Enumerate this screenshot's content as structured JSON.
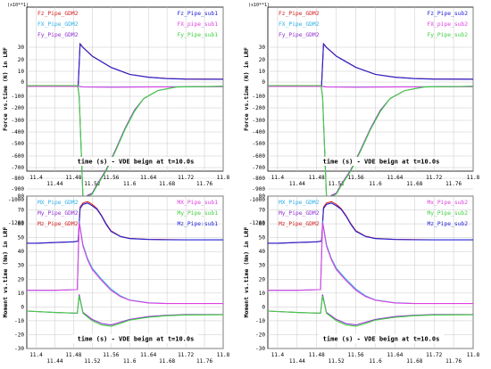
{
  "chart_data": [
    {
      "type": "line",
      "multiplier_label": "(x10**1)",
      "ylabel": "Force vs.time (N) in LRF",
      "xlabel": "time (s) - VDE beign at t=10.0s",
      "xlim": [
        11.38,
        11.8
      ],
      "ylim": [
        -120,
        40
      ],
      "yticks": [
        30,
        20,
        10,
        0,
        -100,
        -200,
        -300,
        -400,
        -500,
        -600,
        -700,
        -800,
        -900,
        -1000,
        -1200
      ],
      "xticks_top": [
        "11.4",
        "11.48",
        "11.56",
        "11.64",
        "11.72",
        "11.8"
      ],
      "xticks_bottom": [
        "11.44",
        "11.52",
        "11.6",
        "11.68",
        "11.76"
      ],
      "legend_left": [
        "Fz_Pipe_GDM2",
        "FX_Pipe_GDM2",
        "Fy_Pipe_GDM2"
      ],
      "legend_right": [
        "Fz_Pipe_sub1",
        "FX_pipe_sub1",
        "Fy_Pipe_sub1"
      ],
      "colors": [
        "#d42020",
        "#30b0e8",
        "#9030d0",
        "#2020d8",
        "#e040e0",
        "#40d040"
      ],
      "series": [
        {
          "name": "Fz_Pipe_GDM2",
          "x": [
            11.38,
            11.49,
            11.494,
            11.5,
            11.52,
            11.56,
            11.6,
            11.64,
            11.68,
            11.72,
            11.8
          ],
          "y": [
            -2.6,
            -2.6,
            33,
            30,
            23,
            13.5,
            7.2,
            4.5,
            3.3,
            2.8,
            2.7
          ]
        },
        {
          "name": "Fz_Pipe_sub1",
          "x": [
            11.38,
            11.49,
            11.494,
            11.5,
            11.52,
            11.56,
            11.6,
            11.64,
            11.68,
            11.72,
            11.8
          ],
          "y": [
            -2.6,
            -2.6,
            32.8,
            29.8,
            22.8,
            13.4,
            7.1,
            4.4,
            3.2,
            2.7,
            2.6
          ]
        },
        {
          "name": "FX_Pipe_GDM2",
          "x": [
            11.38,
            11.49,
            11.5,
            11.56,
            11.64,
            11.72,
            11.8
          ],
          "y": [
            -3.0,
            -3.0,
            -3.4,
            -3.5,
            -3.4,
            -3.3,
            -3.2
          ]
        },
        {
          "name": "FX_pipe_sub1",
          "x": [
            11.38,
            11.49,
            11.5,
            11.56,
            11.64,
            11.72,
            11.8
          ],
          "y": [
            -3.1,
            -3.1,
            -3.5,
            -3.6,
            -3.5,
            -3.4,
            -3.3
          ]
        },
        {
          "name": "Fy_Pipe_GDM2",
          "x": [
            11.38,
            11.489,
            11.492,
            11.5,
            11.504,
            11.51,
            11.52,
            11.53,
            11.55,
            11.57,
            11.59,
            11.61,
            11.63,
            11.66,
            11.7,
            11.8
          ],
          "y": [
            -2.5,
            -2.5,
            -10,
            -97,
            -100,
            -96,
            -94,
            -86,
            -72,
            -55,
            -37,
            -22,
            -12,
            -6,
            -3.5,
            -3
          ]
        },
        {
          "name": "Fy_Pipe_sub1",
          "x": [
            11.38,
            11.489,
            11.492,
            11.5,
            11.504,
            11.51,
            11.52,
            11.53,
            11.55,
            11.57,
            11.59,
            11.61,
            11.63,
            11.66,
            11.7,
            11.8
          ],
          "y": [
            -2.5,
            -2.5,
            -10,
            -98,
            -101,
            -97,
            -95,
            -87,
            -73,
            -56,
            -38,
            -23,
            -12,
            -6,
            -3.5,
            -3
          ]
        }
      ]
    },
    {
      "type": "line",
      "multiplier_label": "(x10**1)",
      "ylabel": "Force vs.time (N) in LRF",
      "xlabel": "time (s) - VDE beign at t=10.0s",
      "xlim": [
        11.38,
        11.8
      ],
      "ylim": [
        -120,
        40
      ],
      "yticks": [
        30,
        20,
        10,
        0,
        -100,
        -200,
        -300,
        -400,
        -500,
        -600,
        -700,
        -800,
        -900,
        -1000,
        -1200
      ],
      "xticks_top": [
        "11.4",
        "11.48",
        "11.56",
        "11.64",
        "11.72",
        "11.8"
      ],
      "xticks_bottom": [
        "11.44",
        "11.52",
        "11.6",
        "11.68",
        "11.76"
      ],
      "legend_left": [
        "Fz_Pipe_GDM2",
        "FX_Pipe_GDM2",
        "Fy_Pipe_GDM2"
      ],
      "legend_right": [
        "Fz_Pipe_sub2",
        "FX_pipe_sub2",
        "Fy_Pipe_sub2"
      ],
      "colors": [
        "#d42020",
        "#30b0e8",
        "#9030d0",
        "#2020d8",
        "#e040e0",
        "#40d040"
      ],
      "series": [
        {
          "name": "Fz_Pipe_GDM2",
          "x": [
            11.38,
            11.49,
            11.494,
            11.5,
            11.52,
            11.56,
            11.6,
            11.64,
            11.68,
            11.72,
            11.8
          ],
          "y": [
            -2.6,
            -2.6,
            33,
            30,
            23,
            13.5,
            7.2,
            4.5,
            3.3,
            2.8,
            2.7
          ]
        },
        {
          "name": "Fz_Pipe_sub2",
          "x": [
            11.38,
            11.49,
            11.494,
            11.5,
            11.52,
            11.56,
            11.6,
            11.64,
            11.68,
            11.72,
            11.8
          ],
          "y": [
            -2.6,
            -2.6,
            32.8,
            29.8,
            22.8,
            13.4,
            7.1,
            4.4,
            3.2,
            2.7,
            2.6
          ]
        },
        {
          "name": "FX_Pipe_GDM2",
          "x": [
            11.38,
            11.49,
            11.5,
            11.56,
            11.64,
            11.72,
            11.8
          ],
          "y": [
            -3.0,
            -3.0,
            -3.4,
            -3.5,
            -3.4,
            -3.3,
            -3.2
          ]
        },
        {
          "name": "FX_pipe_sub2",
          "x": [
            11.38,
            11.49,
            11.5,
            11.56,
            11.64,
            11.72,
            11.8
          ],
          "y": [
            -3.1,
            -3.1,
            -3.5,
            -3.6,
            -3.5,
            -3.4,
            -3.3
          ]
        },
        {
          "name": "Fy_Pipe_GDM2",
          "x": [
            11.38,
            11.489,
            11.492,
            11.5,
            11.504,
            11.51,
            11.52,
            11.53,
            11.55,
            11.57,
            11.59,
            11.61,
            11.63,
            11.66,
            11.7,
            11.8
          ],
          "y": [
            -2.5,
            -2.5,
            -10,
            -97,
            -100,
            -96,
            -94,
            -86,
            -72,
            -55,
            -37,
            -22,
            -12,
            -6,
            -3.5,
            -3
          ]
        },
        {
          "name": "Fy_Pipe_sub2",
          "x": [
            11.38,
            11.489,
            11.492,
            11.5,
            11.504,
            11.51,
            11.52,
            11.53,
            11.55,
            11.57,
            11.59,
            11.61,
            11.63,
            11.66,
            11.7,
            11.8
          ],
          "y": [
            -2.5,
            -2.5,
            -10,
            -98,
            -101,
            -97,
            -95,
            -87,
            -73,
            -56,
            -38,
            -23,
            -12,
            -6,
            -3.5,
            -3
          ]
        }
      ]
    },
    {
      "type": "line",
      "multiplier_label": "",
      "ylabel": "Moment vs.time (Nm) in LRF",
      "xlabel": "time (s) - VDE beign at t=10.0s",
      "xlim": [
        11.38,
        11.8
      ],
      "ylim": [
        -30,
        80
      ],
      "yticks": [
        80,
        70,
        60,
        50,
        40,
        30,
        20,
        10,
        0,
        -10,
        -20,
        -30
      ],
      "xticks_top": [
        "11.4",
        "11.48",
        "11.56",
        "11.64",
        "11.72",
        "11.8"
      ],
      "xticks_bottom": [
        "11.44",
        "11.52",
        "11.6",
        "11.68",
        "11.76"
      ],
      "legend_left": [
        "MX_Pipe_GDM2",
        "My_Pipe_GDM2",
        "Mz_Pipe_GDM2"
      ],
      "legend_right": [
        "MX_Pipe_sub1",
        "My_Pipe_sub1",
        "Mz_Pipe:sub1"
      ],
      "colors": [
        "#30b0e8",
        "#9030d0",
        "#d42020",
        "#e040e0",
        "#40d040",
        "#2020d8"
      ],
      "series": [
        {
          "name": "Mz_Pipe_GDM2",
          "x": [
            11.38,
            11.4,
            11.44,
            11.48,
            11.49,
            11.494,
            11.5,
            11.51,
            11.52,
            11.53,
            11.54,
            11.55,
            11.56,
            11.58,
            11.6,
            11.64,
            11.68,
            11.72,
            11.8
          ],
          "y": [
            46,
            46,
            46.5,
            47,
            47.5,
            72,
            75,
            76,
            74,
            71,
            66,
            60,
            55,
            51,
            49.5,
            48.8,
            48.6,
            48.5,
            48.5
          ]
        },
        {
          "name": "Mz_Pipe:sub1",
          "x": [
            11.38,
            11.4,
            11.44,
            11.48,
            11.49,
            11.494,
            11.5,
            11.51,
            11.52,
            11.53,
            11.54,
            11.55,
            11.56,
            11.58,
            11.6,
            11.64,
            11.68,
            11.72,
            11.8
          ],
          "y": [
            46,
            46,
            46.5,
            47,
            47.5,
            71,
            74,
            75,
            73,
            70.5,
            65.5,
            59.5,
            54.5,
            50.8,
            49.3,
            48.7,
            48.5,
            48.4,
            48.4
          ]
        },
        {
          "name": "MX_Pipe_GDM2",
          "x": [
            11.38,
            11.44,
            11.488,
            11.492,
            11.5,
            11.51,
            11.52,
            11.53,
            11.54,
            11.56,
            11.58,
            11.6,
            11.64,
            11.68,
            11.8
          ],
          "y": [
            12,
            12,
            12.5,
            62,
            45,
            35,
            28,
            24,
            20,
            13,
            8,
            5,
            3,
            2.5,
            2.5
          ]
        },
        {
          "name": "MX_Pipe_sub1",
          "x": [
            11.38,
            11.44,
            11.488,
            11.492,
            11.5,
            11.51,
            11.52,
            11.53,
            11.54,
            11.56,
            11.58,
            11.6,
            11.64,
            11.68,
            11.8
          ],
          "y": [
            12,
            12,
            12.5,
            61,
            44,
            34,
            27,
            23,
            19,
            12,
            7.5,
            4.8,
            2.9,
            2.4,
            2.4
          ]
        },
        {
          "name": "My_Pipe_GDM2",
          "x": [
            11.38,
            11.44,
            11.488,
            11.492,
            11.5,
            11.52,
            11.54,
            11.56,
            11.58,
            11.6,
            11.64,
            11.68,
            11.72,
            11.8
          ],
          "y": [
            -3,
            -4,
            -4.5,
            9,
            -4,
            -9,
            -12,
            -13,
            -11,
            -9,
            -7,
            -6,
            -5.5,
            -5.5
          ]
        },
        {
          "name": "My_Pipe_sub1",
          "x": [
            11.38,
            11.44,
            11.488,
            11.492,
            11.5,
            11.52,
            11.54,
            11.56,
            11.58,
            11.6,
            11.64,
            11.68,
            11.72,
            11.8
          ],
          "y": [
            -3,
            -4,
            -4.5,
            8,
            -4.5,
            -10,
            -13,
            -14,
            -12,
            -9.5,
            -7.5,
            -6.3,
            -5.8,
            -5.7
          ]
        }
      ]
    },
    {
      "type": "line",
      "multiplier_label": "",
      "ylabel": "Moment vs.time (Nm) in LRF",
      "xlabel": "time (s) - VDE beign at t=10.0s",
      "xlim": [
        11.38,
        11.8
      ],
      "ylim": [
        -30,
        80
      ],
      "yticks": [
        80,
        70,
        60,
        50,
        40,
        30,
        20,
        10,
        0,
        -10,
        -20,
        -30
      ],
      "xticks_top": [
        "11.4",
        "11.48",
        "11.56",
        "11.64",
        "11.72",
        "11.8"
      ],
      "xticks_bottom": [
        "11.44",
        "11.52",
        "11.6",
        "11.68",
        "11.76"
      ],
      "legend_left": [
        "MX_Pipe_GDM2",
        "My_Pipe_GDM2",
        "Mz_Pipe_GDM2"
      ],
      "legend_right": [
        "Mx_Pipe_sub2",
        "My_Pipe_sub2",
        "Mz_Pipe_sub2"
      ],
      "colors": [
        "#30b0e8",
        "#9030d0",
        "#d42020",
        "#e040e0",
        "#40d040",
        "#2020d8"
      ],
      "series": [
        {
          "name": "Mz_Pipe_GDM2",
          "x": [
            11.38,
            11.4,
            11.44,
            11.48,
            11.49,
            11.494,
            11.5,
            11.51,
            11.52,
            11.53,
            11.54,
            11.55,
            11.56,
            11.58,
            11.6,
            11.64,
            11.68,
            11.72,
            11.8
          ],
          "y": [
            46,
            46,
            46.5,
            47,
            47.5,
            72,
            75,
            76,
            74,
            71,
            66,
            60,
            55,
            51,
            49.5,
            48.8,
            48.6,
            48.5,
            48.5
          ]
        },
        {
          "name": "Mz_Pipe_sub2",
          "x": [
            11.38,
            11.4,
            11.44,
            11.48,
            11.49,
            11.494,
            11.5,
            11.51,
            11.52,
            11.53,
            11.54,
            11.55,
            11.56,
            11.58,
            11.6,
            11.64,
            11.68,
            11.72,
            11.8
          ],
          "y": [
            46,
            46,
            46.5,
            47,
            47.5,
            71,
            74,
            75,
            73,
            70.5,
            65.5,
            59.5,
            54.5,
            50.8,
            49.3,
            48.7,
            48.5,
            48.4,
            48.4
          ]
        },
        {
          "name": "MX_Pipe_GDM2",
          "x": [
            11.38,
            11.44,
            11.488,
            11.492,
            11.5,
            11.51,
            11.52,
            11.53,
            11.54,
            11.56,
            11.58,
            11.6,
            11.64,
            11.68,
            11.8
          ],
          "y": [
            12,
            12,
            12.5,
            62,
            45,
            35,
            28,
            24,
            20,
            13,
            8,
            5,
            3,
            2.5,
            2.5
          ]
        },
        {
          "name": "Mx_Pipe_sub2",
          "x": [
            11.38,
            11.44,
            11.488,
            11.492,
            11.5,
            11.51,
            11.52,
            11.53,
            11.54,
            11.56,
            11.58,
            11.6,
            11.64,
            11.68,
            11.8
          ],
          "y": [
            12,
            12,
            12.5,
            61,
            44,
            34,
            27,
            23,
            19,
            12,
            7.5,
            4.8,
            2.9,
            2.4,
            2.4
          ]
        },
        {
          "name": "My_Pipe_GDM2",
          "x": [
            11.38,
            11.44,
            11.488,
            11.492,
            11.5,
            11.52,
            11.54,
            11.56,
            11.58,
            11.6,
            11.64,
            11.68,
            11.72,
            11.8
          ],
          "y": [
            -3,
            -4,
            -4.5,
            9,
            -4,
            -9,
            -12,
            -13,
            -11,
            -9,
            -7,
            -6,
            -5.5,
            -5.5
          ]
        },
        {
          "name": "My_Pipe_sub2",
          "x": [
            11.38,
            11.44,
            11.488,
            11.492,
            11.5,
            11.52,
            11.54,
            11.56,
            11.58,
            11.6,
            11.64,
            11.68,
            11.72,
            11.8
          ],
          "y": [
            -3,
            -4,
            -4.5,
            8,
            -4.5,
            -10,
            -13,
            -14,
            -12,
            -9.5,
            -7.5,
            -6.3,
            -5.8,
            -5.7
          ]
        }
      ]
    }
  ]
}
